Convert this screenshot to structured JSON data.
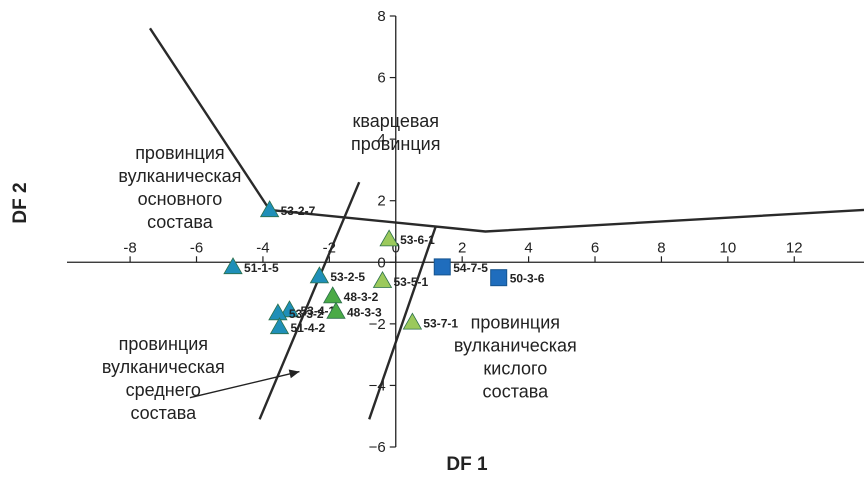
{
  "chart_data": {
    "type": "scatter",
    "xlabel": "DF 1",
    "ylabel": "DF 2",
    "xlim": [
      -9.9,
      14.1
    ],
    "ylim": [
      -6,
      8
    ],
    "x_ticks": [
      "-8",
      "-6",
      "-4",
      "-2",
      "0",
      "2",
      "4",
      "6",
      "8",
      "10",
      "12"
    ],
    "x_tick_values": [
      -8,
      -6,
      -4,
      -2,
      0,
      2,
      4,
      6,
      8,
      10,
      12
    ],
    "y_ticks": [
      "8",
      "6",
      "4",
      "2",
      "0",
      "−2",
      "−4",
      "−6"
    ],
    "y_tick_values": [
      8,
      6,
      4,
      2,
      0,
      -2,
      -4,
      -6
    ],
    "grid": false,
    "colors": {
      "dark_teal": "#1f8fb8",
      "mid_green": "#4aaa47",
      "light_green": "#9bc95c",
      "blue_square": "#1f6dbd"
    },
    "points": [
      {
        "label": "53-2-7",
        "x": -3.8,
        "y": 1.7,
        "marker": "triangle",
        "color": "#1f8fb8"
      },
      {
        "label": "51-1-5",
        "x": -4.9,
        "y": -0.15,
        "marker": "triangle",
        "color": "#1f8fb8"
      },
      {
        "label": "53-2-5",
        "x": -2.3,
        "y": -0.45,
        "marker": "triangle",
        "color": "#1f8fb8"
      },
      {
        "label": "53-4-1",
        "x": -3.2,
        "y": -1.55,
        "marker": "triangle",
        "color": "#1f8fb8"
      },
      {
        "label": "53-3-2",
        "x": -3.55,
        "y": -1.65,
        "marker": "triangle",
        "color": "#1f8fb8"
      },
      {
        "label": "51-4-2",
        "x": -3.5,
        "y": -2.1,
        "marker": "triangle",
        "color": "#1f8fb8"
      },
      {
        "label": "48-3-2",
        "x": -1.9,
        "y": -1.1,
        "marker": "triangle",
        "color": "#4aaa47"
      },
      {
        "label": "48-3-3",
        "x": -1.8,
        "y": -1.6,
        "marker": "triangle",
        "color": "#4aaa47"
      },
      {
        "label": "53-6-1",
        "x": -0.2,
        "y": 0.75,
        "marker": "triangle",
        "color": "#9bc95c"
      },
      {
        "label": "53-5-1",
        "x": -0.4,
        "y": -0.6,
        "marker": "triangle",
        "color": "#9bc95c"
      },
      {
        "label": "53-7-1",
        "x": 0.5,
        "y": -1.95,
        "marker": "triangle",
        "color": "#9bc95c"
      },
      {
        "label": "54-7-5",
        "x": 1.4,
        "y": -0.15,
        "marker": "square",
        "color": "#1f6dbd"
      },
      {
        "label": "50-3-6",
        "x": 3.1,
        "y": -0.5,
        "marker": "square",
        "color": "#1f6dbd"
      }
    ],
    "boundaries": [
      [
        [
          -7.4,
          7.6
        ],
        [
          -3.8,
          1.7
        ],
        [
          2.7,
          1.0
        ],
        [
          14.1,
          1.7
        ]
      ],
      [
        [
          -4.1,
          -5.1
        ],
        [
          -1.1,
          2.6
        ]
      ],
      [
        [
          -0.8,
          -5.1
        ],
        [
          1.2,
          1.15
        ]
      ]
    ],
    "region_labels": [
      {
        "lines": [
          "кварцевая",
          "провинция"
        ],
        "x": 0.0,
        "y": 4.4
      },
      {
        "lines": [
          "провинция",
          "вулканическая",
          "основного",
          "состава"
        ],
        "x": -6.5,
        "y": 3.35
      },
      {
        "lines": [
          "провинция",
          "вулканическая",
          "среднего",
          "состава"
        ],
        "x": -7.0,
        "y": -2.85
      },
      {
        "lines": [
          "провинция",
          "вулканическая",
          "кислого",
          "состава"
        ],
        "x": 3.6,
        "y": -2.15
      }
    ],
    "arrow": {
      "from": [
        -6.2,
        -4.4
      ],
      "to": [
        -2.9,
        -3.55
      ]
    }
  }
}
